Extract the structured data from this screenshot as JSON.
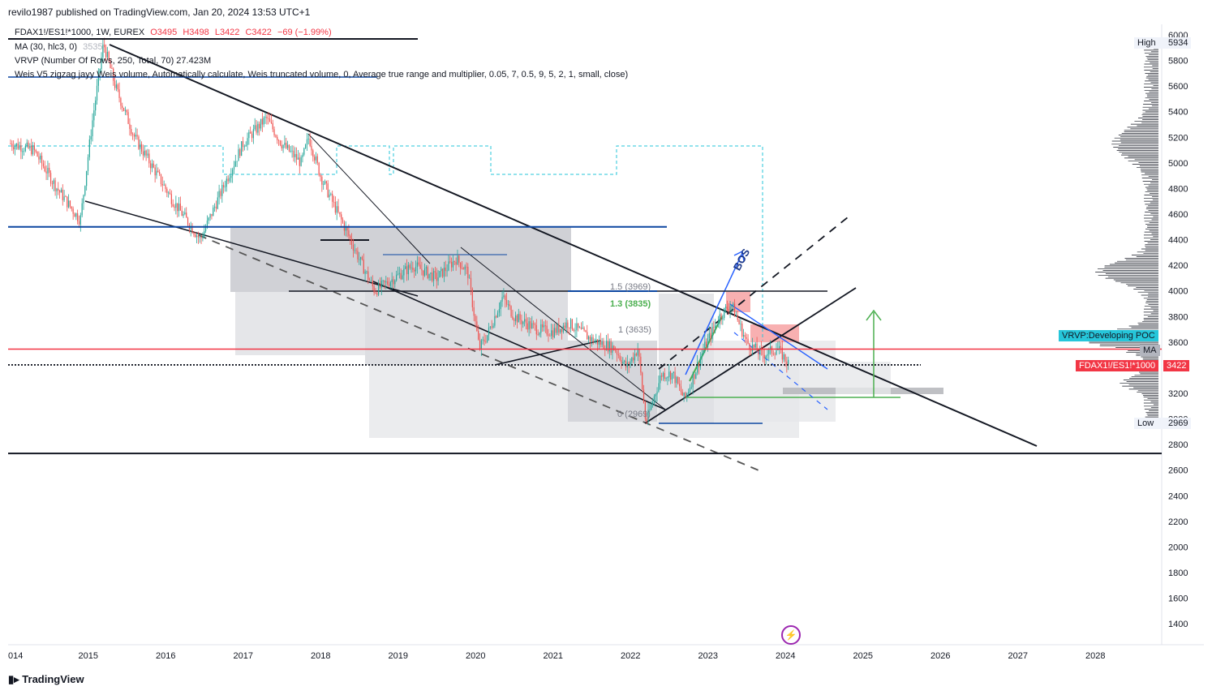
{
  "header": {
    "published": "revilo1987 published on TradingView.com, Jan 20, 2024 13:53 UTC+1"
  },
  "legend": {
    "symbol_line": "FDAX1!/ES1!*1000, 1W, EUREX",
    "open": "O3495",
    "high": "H3498",
    "low": "L3422",
    "close": "C3422",
    "change": "−69 (−1.99%)",
    "ma_line": "MA (30, hlc3, 0)",
    "ma_value": "3535",
    "vrvp_line": "VRVP (Number Of Rows, 250, Total, 70)  27.423M",
    "weis_line": "Weis V5 zigzag jayy  Weis volume, Automatically calculate, Weis truncated volume, 0, Average true range and multiplier, 0.05, 7, 0.5, 9, 5, 2, 1, small, close)"
  },
  "labels": {
    "high_label": "High",
    "high_value": "5934",
    "low_label": "Low",
    "low_value": "2969",
    "poc_label": "VRVP:Developing POC",
    "ma_tag": "MA",
    "symbol_tag": "FDAX1!/ES1!*1000",
    "price_tag": "3422",
    "fib_15": "1.5 (3969)",
    "fib_13": "1.3 (3835)",
    "fib_1": "1 (3635)",
    "fib_0": "0 (2969)",
    "bos": "BOS"
  },
  "footer": {
    "brand": "TradingView"
  },
  "colors": {
    "candle_up": "#26a69a",
    "candle_down": "#ef5350",
    "red_line": "#f23645",
    "navy_line": "#0d47a1",
    "poc_bg": "#26c6da",
    "price_bg": "#f23645",
    "fib_green": "#4caf50",
    "volume_profile": "#131722"
  },
  "chart_data": {
    "type": "line",
    "x_axis_ticks": [
      "014",
      "2015",
      "2016",
      "2017",
      "2018",
      "2019",
      "2020",
      "2021",
      "2022",
      "2023",
      "2024",
      "2025",
      "2026",
      "2027",
      "2028"
    ],
    "y_axis_ticks": [
      6000,
      5800,
      5600,
      5400,
      5200,
      5000,
      4800,
      4600,
      4400,
      4200,
      4000,
      3800,
      3600,
      3400,
      3200,
      3000,
      2800,
      2600,
      2400,
      2200,
      2000,
      1800,
      1600,
      1400
    ],
    "ylim": [
      1250,
      6050
    ],
    "price_series": {
      "x": [
        2014.0,
        2014.3,
        2014.6,
        2014.9,
        2015.05,
        2015.2,
        2015.35,
        2015.6,
        2015.9,
        2016.1,
        2016.45,
        2016.7,
        2017.0,
        2017.3,
        2017.5,
        2017.75,
        2017.85,
        2018.0,
        2018.15,
        2018.35,
        2018.5,
        2018.7,
        2018.95,
        2019.2,
        2019.5,
        2019.75,
        2019.9,
        2020.05,
        2020.15,
        2020.35,
        2020.5,
        2020.8,
        2021.0,
        2021.2,
        2021.5,
        2021.8,
        2021.95,
        2022.1,
        2022.2,
        2022.4,
        2022.55,
        2022.7,
        2022.95,
        2023.15,
        2023.3,
        2023.5,
        2023.7,
        2023.9,
        2024.05
      ],
      "y": [
        5150,
        5100,
        4800,
        4550,
        5300,
        5934,
        5600,
        5200,
        4900,
        4700,
        4400,
        4750,
        5150,
        5350,
        5150,
        5000,
        5200,
        4900,
        4700,
        4450,
        4250,
        4000,
        4100,
        4200,
        4100,
        4250,
        4150,
        3550,
        3650,
        3950,
        3800,
        3700,
        3680,
        3750,
        3620,
        3550,
        3400,
        3550,
        2969,
        3350,
        3350,
        3150,
        3550,
        3800,
        3900,
        3600,
        3500,
        3550,
        3422
      ]
    },
    "annotations": {
      "horizontal_levels": [
        4500,
        3545,
        3422,
        2730
      ],
      "fibonacci": [
        {
          "level": "1.5",
          "value": 3969
        },
        {
          "level": "1.3",
          "value": 3835
        },
        {
          "level": "1",
          "value": 3635
        },
        {
          "level": "0",
          "value": 2969
        }
      ],
      "high": 5934,
      "low": 2969,
      "last_price": 3422
    }
  }
}
